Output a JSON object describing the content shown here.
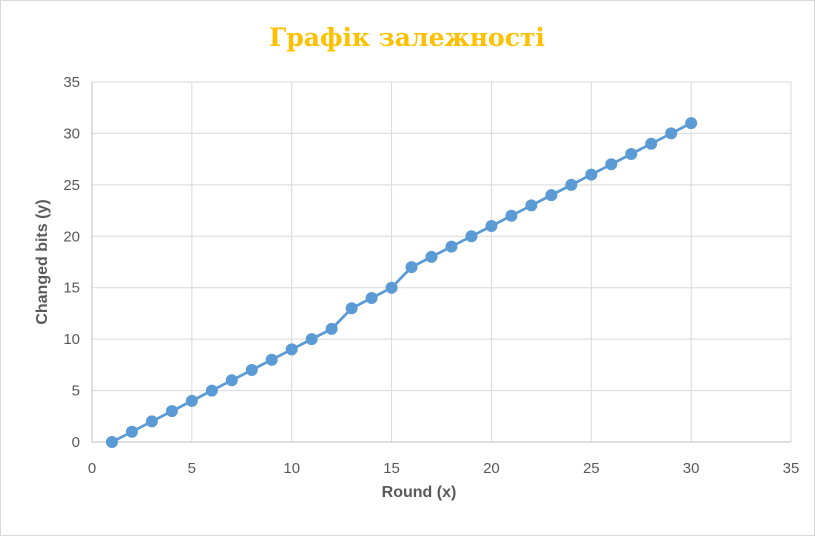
{
  "chart_data": {
    "type": "line",
    "title": "Графік залежності",
    "xlabel": "Round (x)",
    "ylabel": "Changed bits (y)",
    "xlim": [
      0,
      35
    ],
    "ylim": [
      0,
      35
    ],
    "xticks": [
      0,
      5,
      10,
      15,
      20,
      25,
      30,
      35
    ],
    "yticks": [
      0,
      5,
      10,
      15,
      20,
      25,
      30,
      35
    ],
    "grid": true,
    "legend": "none",
    "markers": true,
    "color": "#5b9bd5",
    "series": [
      {
        "x": [
          1,
          2,
          3,
          4,
          5,
          6,
          7,
          8,
          9,
          10,
          11,
          12,
          13,
          14,
          15,
          16,
          17,
          18,
          19,
          20,
          21,
          22,
          23,
          24,
          25,
          26,
          27,
          28,
          29,
          30
        ],
        "y": [
          0,
          1,
          2,
          3,
          4,
          5,
          6,
          7,
          8,
          9,
          10,
          11,
          13,
          14,
          15,
          17,
          18,
          19,
          20,
          21,
          22,
          23,
          24,
          25,
          26,
          27,
          28,
          29,
          30,
          31
        ]
      }
    ]
  }
}
